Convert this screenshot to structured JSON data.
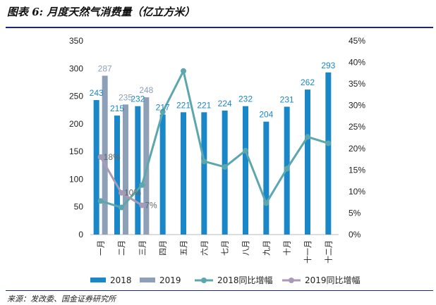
{
  "header": {
    "title": "图表 6:  月度天然气消费量（亿立方米）"
  },
  "footer": {
    "source": "来源：发改委、国金证券研究所"
  },
  "chart_data": {
    "type": "bar",
    "categories": [
      "一月",
      "二月",
      "三月",
      "四月",
      "五月",
      "六月",
      "七月",
      "八月",
      "九月",
      "十月",
      "十一月",
      "十二月"
    ],
    "series": [
      {
        "name": "2018",
        "kind": "bar",
        "axis": "left",
        "color": "#1a87c8",
        "values": [
          243,
          215,
          232,
          217,
          221,
          221,
          224,
          232,
          204,
          231,
          262,
          293
        ],
        "labels": [
          "243",
          "215",
          "232",
          "217",
          "221",
          "221",
          "224",
          "232",
          "204",
          "231",
          "262",
          "293"
        ]
      },
      {
        "name": "2019",
        "kind": "bar",
        "axis": "left",
        "color": "#8ea0b8",
        "values": [
          287,
          235,
          248,
          null,
          null,
          null,
          null,
          null,
          null,
          null,
          null,
          null
        ],
        "labels": [
          "287",
          "235",
          "248",
          "",
          "",
          "",
          "",
          "",
          "",
          "",
          "",
          ""
        ]
      },
      {
        "name": "2018同比增幅",
        "kind": "line",
        "axis": "right",
        "color": "#5ba7ad",
        "values": [
          7.8,
          6.3,
          11.5,
          28.5,
          38.0,
          17.0,
          15.7,
          19.5,
          7.3,
          15.3,
          22.7,
          21.2
        ]
      },
      {
        "name": "2019同比增幅",
        "kind": "line",
        "axis": "right",
        "color": "#a99ab5",
        "values": [
          18,
          9.7,
          6.8,
          null,
          null,
          null,
          null,
          null,
          null,
          null,
          null,
          null
        ],
        "labels": [
          "18%",
          "10%",
          "7%",
          "",
          "",
          "",
          "",
          "",
          "",
          "",
          "",
          ""
        ]
      }
    ],
    "y_left": {
      "min": 0,
      "max": 350,
      "ticks": [
        "0",
        "50",
        "100",
        "150",
        "200",
        "250",
        "300",
        "350"
      ]
    },
    "y_right": {
      "min": 0,
      "max": 45,
      "ticks": [
        "0%",
        "5%",
        "10%",
        "15%",
        "20%",
        "25%",
        "30%",
        "35%",
        "40%",
        "45%"
      ]
    },
    "grid": false,
    "legend_position": "bottom"
  }
}
